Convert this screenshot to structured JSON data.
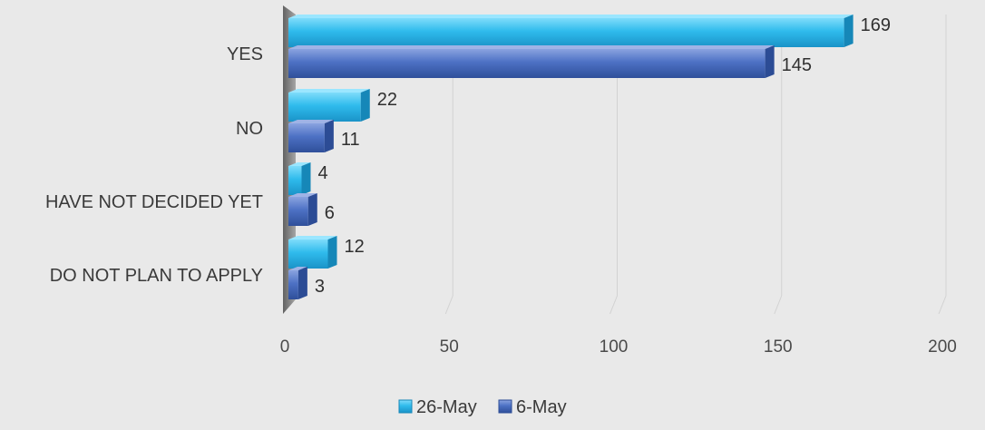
{
  "chart_data": {
    "type": "bar",
    "orientation": "horizontal",
    "categories": [
      "YES",
      "NO",
      "HAVE NOT DECIDED YET",
      "DO NOT PLAN TO APPLY"
    ],
    "series": [
      {
        "name": "26-May",
        "values": [
          169,
          22,
          4,
          12
        ],
        "color": "#29b6e8"
      },
      {
        "name": "6-May",
        "values": [
          145,
          11,
          6,
          3
        ],
        "color": "#4a6fc1"
      }
    ],
    "xticks": [
      "0",
      "50",
      "100",
      "150",
      "200"
    ],
    "xlim": [
      0,
      200
    ],
    "title": "",
    "xlabel": "",
    "ylabel": "",
    "grid": true,
    "legend_position": "bottom",
    "style": "3d"
  }
}
